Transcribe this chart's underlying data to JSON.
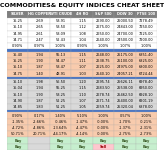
{
  "title": "COMMODITIES& EQUITY INDICES CHEAT SHEET",
  "headers": [
    "SILVER",
    "HG COPPER",
    "WTI CRUDE",
    "4H RO",
    "S&P 500",
    "DOW 30",
    "FTSE 100"
  ],
  "s1_white_rows": [
    [
      "15.25",
      "2.69",
      "53.91",
      "1.15",
      "2690.00",
      "25000.50",
      "7278.49"
    ],
    [
      "15.10",
      "2.65",
      "53.50",
      "1.12",
      "2675.00",
      "24843.00",
      "7250.00"
    ],
    [
      "14.95",
      "2.61",
      "53.09",
      "1.08",
      "2650.00",
      "24700.00",
      "7225.00"
    ],
    [
      "14.71",
      "2.47",
      "52.43",
      "1.04",
      "2640.00",
      "24500.00",
      "7200.00"
    ],
    [
      "0.90%",
      "0.97%",
      "1.00%",
      "0.90%",
      "1.00%",
      "1.07%",
      "1.00%"
    ]
  ],
  "s2_orange_rows": [
    [
      "15.40",
      "1.94",
      "55.13",
      "1.15",
      "2648.00",
      "25175.00",
      "6851.40"
    ],
    [
      "15.25",
      "1.90",
      "54.47",
      "1.11",
      "2638.75",
      "25100.00",
      "6825.00"
    ],
    [
      "15.10",
      "1.87",
      "53.47",
      "1.07",
      "2625.00",
      "24975.00",
      "6800.00"
    ],
    [
      "14.75",
      "1.40",
      "48.91",
      "1.03",
      "2540.10",
      "24057.21",
      "6724.44"
    ]
  ],
  "s3_gray_rows": [
    [
      "15.10",
      "1.98",
      "56.50",
      "1.20",
      "2695.74",
      "25626.11",
      "6978.40"
    ],
    [
      "15.04",
      "1.94",
      "55.25",
      "1.15",
      "2683.50",
      "25538.00",
      "6950.00"
    ],
    [
      "15.10",
      "1.90",
      "53.25",
      "1.10",
      "2678.74",
      "25462.50",
      "6928.10"
    ],
    [
      "14.90",
      "1.87",
      "52.25",
      "1.07",
      "2671.74",
      "25400.00",
      "6901.19"
    ],
    [
      "14.85",
      "1.83",
      "51.25",
      "1.05",
      "2659.74",
      "25320.04",
      "6878.00"
    ]
  ],
  "s4_pct_rows": [
    [
      "0.90%",
      "0.17%",
      "1.40%",
      "5.10%",
      "1.00%",
      "0.57%",
      "1.00%"
    ],
    [
      "-1.35%",
      "-2.66%",
      "-0.46%",
      "-1.47%",
      "-0.00%",
      "-1.70%",
      "-0.21%"
    ],
    [
      "-4.72%",
      "-4.86%",
      "-13.64%",
      "-4.47%",
      "-0.00%",
      "-1.37%",
      "-2.31%"
    ],
    [
      "50.71%",
      "20.71%",
      "-44.17%",
      "-4.14%",
      "-0.00%",
      "-2.75%",
      "-2.73%"
    ]
  ],
  "s5_signal_rows": [
    [
      "Buy",
      "",
      "Buy",
      "Buy",
      "Buy",
      "Buy",
      "Buy"
    ],
    [
      "Buy",
      "",
      "Buy",
      "Buy",
      "Sell",
      "Buy",
      "Buy"
    ]
  ],
  "bg_white": "#FFFFFF",
  "header_bg": "#7F7F7F",
  "header_fg": "#FFFFFF",
  "row_bg_white": "#FFFFFF",
  "row_bg_orange": "#F8CBAD",
  "row_bg_blue": "#4472C4",
  "row_bg_gray": "#D9D9D9",
  "buy_green_bg": "#C6EFCE",
  "buy_green_fg": "#375623",
  "sell_red_bg": "#FFC7CE",
  "sell_red_fg": "#9C0006",
  "neutral_gray": "#D9D9D9",
  "title_fontsize": 4.5,
  "header_fontsize": 2.5,
  "cell_fontsize": 2.5
}
